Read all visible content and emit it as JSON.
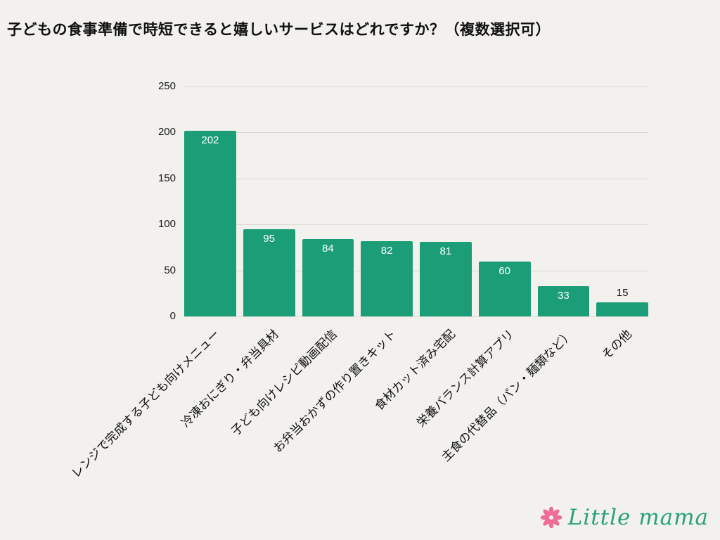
{
  "title": "子どもの食事準備で時短できると嬉しいサービスはどれですか？（複数選択可）",
  "chart_data": {
    "type": "bar",
    "categories": [
      "レンジで完成する子ども向けメニュー",
      "冷凍おにぎり・弁当具材",
      "子ども向けレシピ動画配信",
      "お弁当おかずの作り置きキット",
      "食材カット済み宅配",
      "栄養バランス計算アプリ",
      "主食の代替品（パン・麺類など）",
      "その他"
    ],
    "values": [
      202,
      95,
      84,
      82,
      81,
      60,
      33,
      15
    ],
    "title": "",
    "xlabel": "",
    "ylabel": "",
    "ylim": [
      0,
      250
    ],
    "yticks": [
      0,
      50,
      100,
      150,
      200,
      250
    ],
    "grid": true,
    "legend": false,
    "bar_color": "#1b9e77"
  },
  "colors": {
    "background": "#f2f1ee",
    "bar": "#1b9e77",
    "grid": "#dcdad6",
    "value_label_inside": "#ffffff",
    "value_label_outside": "#111111",
    "logo_text": "#28a17c",
    "logo_flower": "#ee6c97"
  },
  "logo": {
    "text": "Little mama"
  }
}
